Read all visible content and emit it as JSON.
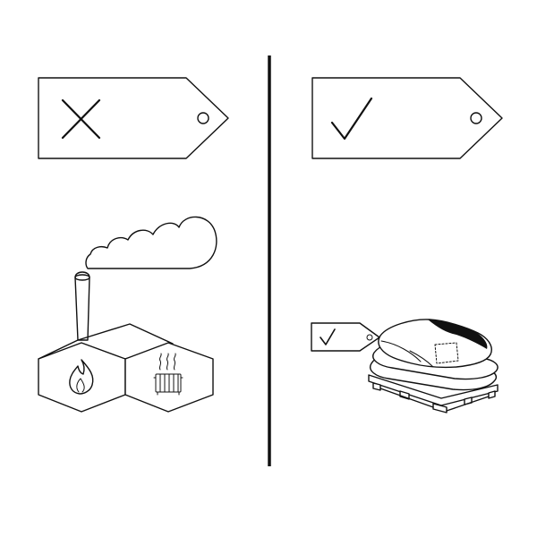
{
  "colors": {
    "stroke": "#111111",
    "background": "#ffffff"
  },
  "left_panel": {
    "tag_icon": "cross-icon",
    "factory_icon": "factory-icon",
    "flame_icon": "flame-icon",
    "radiator_icon": "radiator-icon"
  },
  "right_panel": {
    "tag_icon": "check-icon",
    "bags_icon": "bags-on-pallet-icon",
    "small_tag_icon": "small-check-tag-icon"
  }
}
